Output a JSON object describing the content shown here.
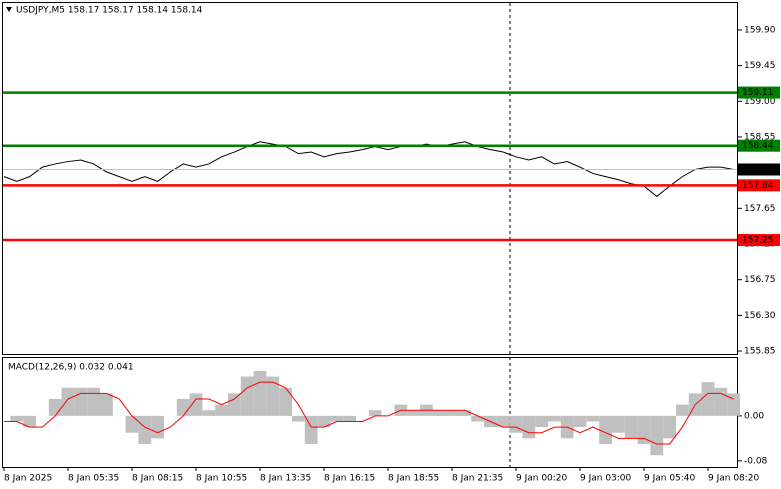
{
  "chart_data": [
    {
      "type": "line",
      "title": "USDJPY,M5  158.17 158.17 158.14 158.14",
      "categories": [
        "8 Jan 2025",
        null,
        null,
        null,
        null,
        "8 Jan 05:35",
        null,
        null,
        null,
        null,
        "8 Jan 08:15",
        null,
        null,
        null,
        null,
        "8 Jan 10:55",
        null,
        null,
        null,
        null,
        "8 Jan 13:35",
        null,
        null,
        null,
        null,
        "8 Jan 16:15",
        null,
        null,
        null,
        null,
        "8 Jan 18:55",
        null,
        null,
        null,
        null,
        "8 Jan 21:35",
        null,
        null,
        null,
        null,
        "9 Jan 00:20",
        null,
        null,
        null,
        null,
        "9 Jan 03:00",
        null,
        null,
        null,
        null,
        "9 Jan 05:40",
        null,
        null,
        null,
        null,
        "9 Jan 08:20",
        null,
        null
      ],
      "values": [
        158.05,
        157.99,
        158.05,
        158.17,
        158.21,
        158.24,
        158.26,
        158.21,
        158.11,
        158.05,
        157.99,
        158.05,
        157.99,
        158.11,
        158.21,
        158.17,
        158.21,
        158.3,
        158.36,
        158.43,
        158.49,
        158.46,
        158.43,
        158.34,
        158.36,
        158.3,
        158.34,
        158.36,
        158.39,
        158.43,
        158.39,
        158.43,
        158.43,
        158.46,
        158.43,
        158.46,
        158.49,
        158.43,
        158.39,
        158.36,
        158.3,
        158.26,
        158.3,
        158.21,
        158.24,
        158.17,
        158.09,
        158.05,
        158.01,
        157.96,
        157.93,
        157.8,
        157.93,
        158.05,
        158.14,
        158.17,
        158.17,
        158.14
      ],
      "color": "#000000",
      "ylim": [
        155.8,
        160.24
      ],
      "yticks": [
        {
          "value": 159.9,
          "label": "159.90"
        },
        159.45,
        {
          "value": 159,
          "label": "159.00"
        },
        158.55,
        157.65,
        {
          "value": 157.2,
          "label": "157.20"
        },
        156.75,
        {
          "value": 156.3,
          "label": "156.30"
        },
        155.85
      ],
      "levels": [
        159.11,
        158.44,
        157.94,
        157.25
      ],
      "level_colors": [
        "#008000",
        "#008000",
        "#ff0000",
        "#ff0000"
      ],
      "last_price": 158.14
    },
    {
      "type": "bar",
      "title": "MACD(12,26,9) 0.032 0.041",
      "series": [
        {
          "type": "bar",
          "color": "#c0c0c0",
          "values": [
            0,
            -0.01,
            -0.02,
            0,
            0.03,
            0.05,
            0.05,
            0.05,
            0.04,
            0,
            -0.03,
            -0.05,
            -0.04,
            0,
            0.03,
            0.04,
            0.01,
            0.02,
            0.04,
            0.07,
            0.08,
            0.07,
            0.05,
            -0.01,
            -0.05,
            -0.02,
            -0.01,
            -0.01,
            0,
            0.01,
            0,
            0.02,
            0.01,
            0.02,
            0.01,
            0.01,
            0.01,
            -0.01,
            -0.02,
            -0.02,
            -0.03,
            -0.04,
            -0.02,
            -0.01,
            -0.04,
            -0.02,
            -0.01,
            -0.05,
            -0.03,
            -0.04,
            -0.05,
            -0.07,
            -0.04,
            0.02,
            0.04,
            0.06,
            0.05,
            0.04
          ]
        },
        {
          "type": "line",
          "color": "#ff0000",
          "values": [
            -0.01,
            -0.01,
            -0.02,
            -0.02,
            0,
            0.03,
            0.04,
            0.04,
            0.04,
            0.03,
            0,
            -0.02,
            -0.03,
            -0.02,
            0,
            0.03,
            0.03,
            0.02,
            0.03,
            0.05,
            0.06,
            0.06,
            0.05,
            0.02,
            -0.02,
            -0.02,
            -0.01,
            -0.01,
            -0.01,
            0,
            0,
            0.01,
            0.01,
            0.01,
            0.01,
            0.01,
            0.01,
            0,
            -0.01,
            -0.02,
            -0.02,
            -0.03,
            -0.03,
            -0.02,
            -0.02,
            -0.03,
            -0.02,
            -0.03,
            -0.04,
            -0.04,
            -0.04,
            -0.05,
            -0.05,
            -0.02,
            0.02,
            0.04,
            0.04,
            0.03
          ]
        }
      ],
      "ylim": [
        -0.091,
        0.103
      ],
      "yticks": [
        {
          "value": 0,
          "label": "0.00"
        },
        {
          "value": -0.08,
          "label": "-0.08"
        }
      ]
    }
  ]
}
